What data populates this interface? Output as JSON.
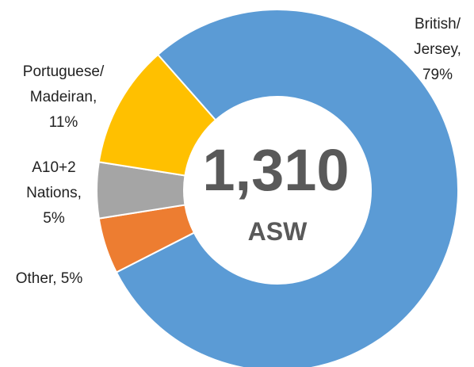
{
  "chart_data": {
    "type": "donut",
    "values": [
      79,
      5,
      5,
      11
    ],
    "value_labels": [
      "British/\nJersey,\n79%",
      "Other, 5%",
      "A10+2\nNations,\n5%",
      "Portuguese/\nMadeiran,\n11%"
    ],
    "colors": [
      "#5b9bd5",
      "#ed7d31",
      "#a5a5a5",
      "#ffc000"
    ],
    "center_label": "1,310",
    "center_sublabel": "ASW"
  }
}
